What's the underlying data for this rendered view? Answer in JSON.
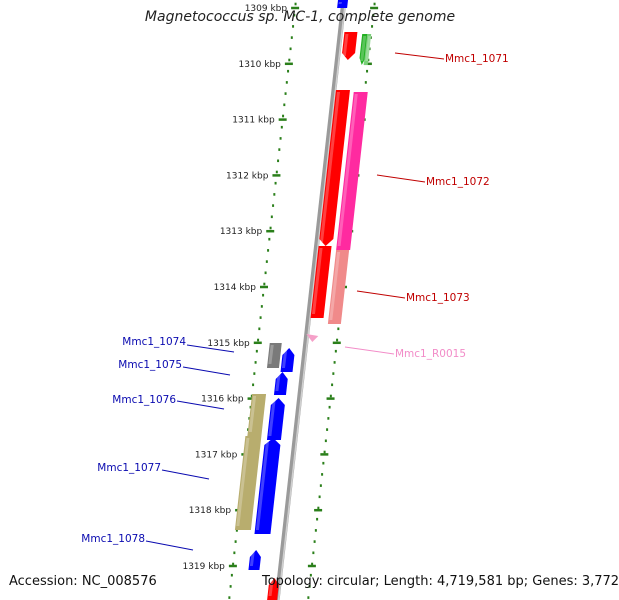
{
  "title": "Magnetococcus sp. MC-1, complete genome",
  "accession_text": "Accession: NC_008576",
  "topology_text": "Topology: circular; Length: 4,719,581 bp; Genes: 3,772",
  "ruler_labels": [
    "1309 kbp",
    "1310 kbp",
    "1311 kbp",
    "1312 kbp",
    "1313 kbp",
    "1314 kbp",
    "1315 kbp",
    "1316 kbp",
    "1317 kbp",
    "1318 kbp",
    "1319 kbp"
  ],
  "colors": {
    "axis": "#808080",
    "ruler_tick": "#2a7f1a",
    "label_red": "#c00000",
    "label_blue": "#0a0ab0",
    "label_pink": "#f28cc8",
    "cds_red": "#ff0000",
    "cds_magenta": "#ff2aa0",
    "cds_salmon": "#f08a8a",
    "cds_green": "#22b022",
    "cds_blue": "#0000ff",
    "cds_gray": "#7a7a7a",
    "cds_olive": "#b8ad6e",
    "rna_pink": "#f5a0c8"
  },
  "gene_labels": [
    {
      "id": "Mmc1_1071",
      "text": "Mmc1_1071",
      "color_key": "label_red"
    },
    {
      "id": "Mmc1_1072",
      "text": "Mmc1_1072",
      "color_key": "label_red"
    },
    {
      "id": "Mmc1_1073",
      "text": "Mmc1_1073",
      "color_key": "label_red"
    },
    {
      "id": "Mmc1_R0015",
      "text": "Mmc1_R0015",
      "color_key": "label_pink"
    },
    {
      "id": "Mmc1_1074",
      "text": "Mmc1_1074",
      "color_key": "label_blue"
    },
    {
      "id": "Mmc1_1075",
      "text": "Mmc1_1075",
      "color_key": "label_blue"
    },
    {
      "id": "Mmc1_1076",
      "text": "Mmc1_1076",
      "color_key": "label_blue"
    },
    {
      "id": "Mmc1_1077",
      "text": "Mmc1_1077",
      "color_key": "label_blue"
    },
    {
      "id": "Mmc1_1078",
      "text": "Mmc1_1078",
      "color_key": "label_blue"
    }
  ]
}
